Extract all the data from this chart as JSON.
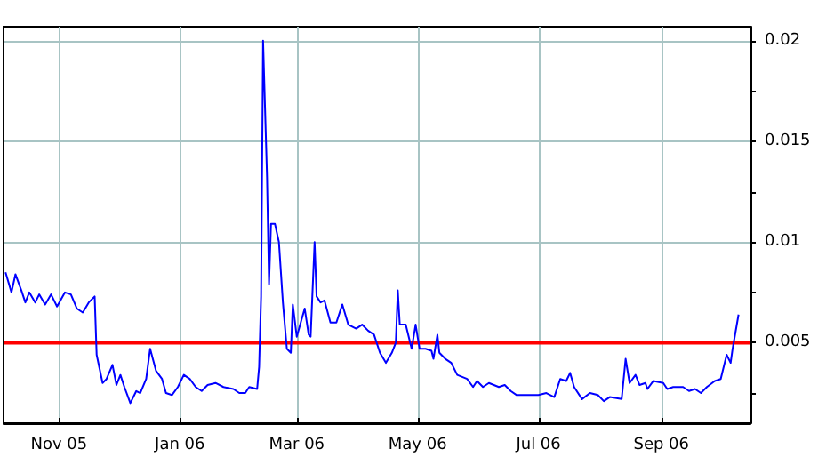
{
  "chart_data": {
    "type": "line",
    "x": [
      "2005-10-05",
      "2005-10-08",
      "2005-10-10",
      "2005-10-13",
      "2005-10-15",
      "2005-10-17",
      "2005-10-20",
      "2005-10-22",
      "2005-10-25",
      "2005-10-28",
      "2005-10-31",
      "2005-11-04",
      "2005-11-07",
      "2005-11-10",
      "2005-11-13",
      "2005-11-16",
      "2005-11-19",
      "2005-11-20",
      "2005-11-23",
      "2005-11-25",
      "2005-11-28",
      "2005-11-30",
      "2005-12-02",
      "2005-12-04",
      "2005-12-07",
      "2005-12-10",
      "2005-12-12",
      "2005-12-15",
      "2005-12-17",
      "2005-12-20",
      "2005-12-23",
      "2005-12-25",
      "2005-12-28",
      "2005-12-31",
      "2006-01-03",
      "2006-01-06",
      "2006-01-09",
      "2006-01-12",
      "2006-01-15",
      "2006-01-19",
      "2006-01-23",
      "2006-01-28",
      "2006-01-31",
      "2006-02-03",
      "2006-02-05",
      "2006-02-09",
      "2006-02-10",
      "2006-02-11",
      "2006-02-12",
      "2006-02-14",
      "2006-02-15",
      "2006-02-16",
      "2006-02-18",
      "2006-02-20",
      "2006-02-22",
      "2006-02-24",
      "2006-02-26",
      "2006-02-27",
      "2006-03-01",
      "2006-03-03",
      "2006-03-05",
      "2006-03-07",
      "2006-03-08",
      "2006-03-10",
      "2006-03-11",
      "2006-03-13",
      "2006-03-15",
      "2006-03-18",
      "2006-03-21",
      "2006-03-24",
      "2006-03-27",
      "2006-03-31",
      "2006-04-03",
      "2006-04-06",
      "2006-04-09",
      "2006-04-12",
      "2006-04-15",
      "2006-04-18",
      "2006-04-20",
      "2006-04-21",
      "2006-04-22",
      "2006-04-25",
      "2006-04-28",
      "2006-04-30",
      "2006-05-02",
      "2006-05-05",
      "2006-05-08",
      "2006-05-09",
      "2006-05-11",
      "2006-05-12",
      "2006-05-15",
      "2006-05-18",
      "2006-05-21",
      "2006-05-26",
      "2006-05-29",
      "2006-05-31",
      "2006-06-03",
      "2006-06-06",
      "2006-06-11",
      "2006-06-14",
      "2006-06-17",
      "2006-06-20",
      "2006-06-25",
      "2006-07-01",
      "2006-07-05",
      "2006-07-09",
      "2006-07-12",
      "2006-07-15",
      "2006-07-17",
      "2006-07-19",
      "2006-07-23",
      "2006-07-27",
      "2006-07-31",
      "2006-08-03",
      "2006-08-06",
      "2006-08-12",
      "2006-08-14",
      "2006-08-16",
      "2006-08-19",
      "2006-08-21",
      "2006-08-24",
      "2006-08-25",
      "2006-08-28",
      "2006-09-02",
      "2006-09-04",
      "2006-09-07",
      "2006-09-12",
      "2006-09-15",
      "2006-09-18",
      "2006-09-21",
      "2006-09-24",
      "2006-09-28",
      "2006-10-01",
      "2006-10-04",
      "2006-10-06",
      "2006-10-07",
      "2006-10-10"
    ],
    "series": [
      {
        "color": "#0000ff",
        "values": [
          0.0085,
          0.0075,
          0.0084,
          0.0076,
          0.007,
          0.0075,
          0.007,
          0.0074,
          0.0069,
          0.0074,
          0.0068,
          0.0075,
          0.0074,
          0.0067,
          0.0065,
          0.007,
          0.0073,
          0.0044,
          0.003,
          0.0032,
          0.0039,
          0.0029,
          0.0034,
          0.0028,
          0.002,
          0.0026,
          0.0025,
          0.0032,
          0.0047,
          0.0036,
          0.0032,
          0.0025,
          0.0024,
          0.0028,
          0.0034,
          0.0032,
          0.0028,
          0.0026,
          0.0029,
          0.003,
          0.0028,
          0.0027,
          0.0025,
          0.0025,
          0.0028,
          0.0027,
          0.0038,
          0.0073,
          0.02,
          0.0132,
          0.0079,
          0.0109,
          0.0109,
          0.01,
          0.007,
          0.0047,
          0.0045,
          0.0069,
          0.0053,
          0.006,
          0.0067,
          0.0054,
          0.0053,
          0.01,
          0.0073,
          0.007,
          0.0071,
          0.006,
          0.006,
          0.0069,
          0.0059,
          0.0057,
          0.0059,
          0.0056,
          0.0054,
          0.0045,
          0.004,
          0.0045,
          0.005,
          0.0076,
          0.0059,
          0.0059,
          0.0047,
          0.0059,
          0.0047,
          0.0047,
          0.0046,
          0.0042,
          0.0054,
          0.0045,
          0.0042,
          0.004,
          0.0034,
          0.0032,
          0.0028,
          0.0031,
          0.0028,
          0.003,
          0.0028,
          0.0029,
          0.0026,
          0.0024,
          0.0024,
          0.0024,
          0.0025,
          0.0023,
          0.0032,
          0.0031,
          0.0035,
          0.0028,
          0.0022,
          0.0025,
          0.0024,
          0.0021,
          0.0023,
          0.0022,
          0.0042,
          0.003,
          0.0034,
          0.0029,
          0.003,
          0.0027,
          0.0031,
          0.003,
          0.0027,
          0.0028,
          0.0028,
          0.0026,
          0.0027,
          0.0025,
          0.0028,
          0.0031,
          0.0032,
          0.0044,
          0.004,
          0.0047,
          0.0064
        ]
      }
    ],
    "xlim": [
      "2005-10-04",
      "2006-10-16"
    ],
    "xticks": [
      {
        "value": "2005-11-01",
        "label": "Nov 05"
      },
      {
        "value": "2006-01-01",
        "label": "Jan 06"
      },
      {
        "value": "2006-03-01",
        "label": "Mar 06"
      },
      {
        "value": "2006-05-01",
        "label": "May 06"
      },
      {
        "value": "2006-07-01",
        "label": "Jul 06"
      },
      {
        "value": "2006-09-01",
        "label": "Sep 06"
      }
    ],
    "ylim": [
      0.001,
      0.0207
    ],
    "yticks": [
      {
        "value": 0.0025,
        "label": null
      },
      0.005,
      {
        "value": 0.0075,
        "label": null
      },
      0.01,
      {
        "value": 0.0125,
        "label": null
      },
      0.015,
      {
        "value": 0.0175,
        "label": null
      },
      0.02
    ],
    "ref_lines": [
      {
        "axis": "y",
        "value": 0.005,
        "color": "#ff0000"
      }
    ],
    "grid": true,
    "marker": "none",
    "line_style": "solid"
  }
}
